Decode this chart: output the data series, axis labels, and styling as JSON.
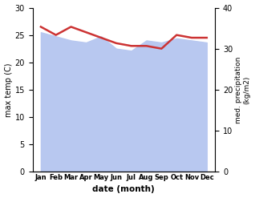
{
  "months": [
    "Jan",
    "Feb",
    "Mar",
    "Apr",
    "May",
    "Jun",
    "Jul",
    "Aug",
    "Sep",
    "Oct",
    "Nov",
    "Dec"
  ],
  "max_temp": [
    26.5,
    25.0,
    26.5,
    25.5,
    24.5,
    23.5,
    23.0,
    23.0,
    22.5,
    25.0,
    24.5,
    24.5
  ],
  "precipitation": [
    34,
    33,
    32,
    31.5,
    33,
    30,
    29.5,
    32,
    31.5,
    32.5,
    32,
    31.5
  ],
  "temp_color": "#cc3333",
  "precip_fill_color": "#b8c8f0",
  "ylabel_left": "max temp (C)",
  "ylabel_right": "med. precipitation\n(kg/m2)",
  "xlabel": "date (month)",
  "ylim_left": [
    0,
    30
  ],
  "ylim_right": [
    0,
    40
  ],
  "yticks_left": [
    0,
    5,
    10,
    15,
    20,
    25,
    30
  ],
  "yticks_right": [
    0,
    10,
    20,
    30,
    40
  ],
  "background_color": "#ffffff"
}
